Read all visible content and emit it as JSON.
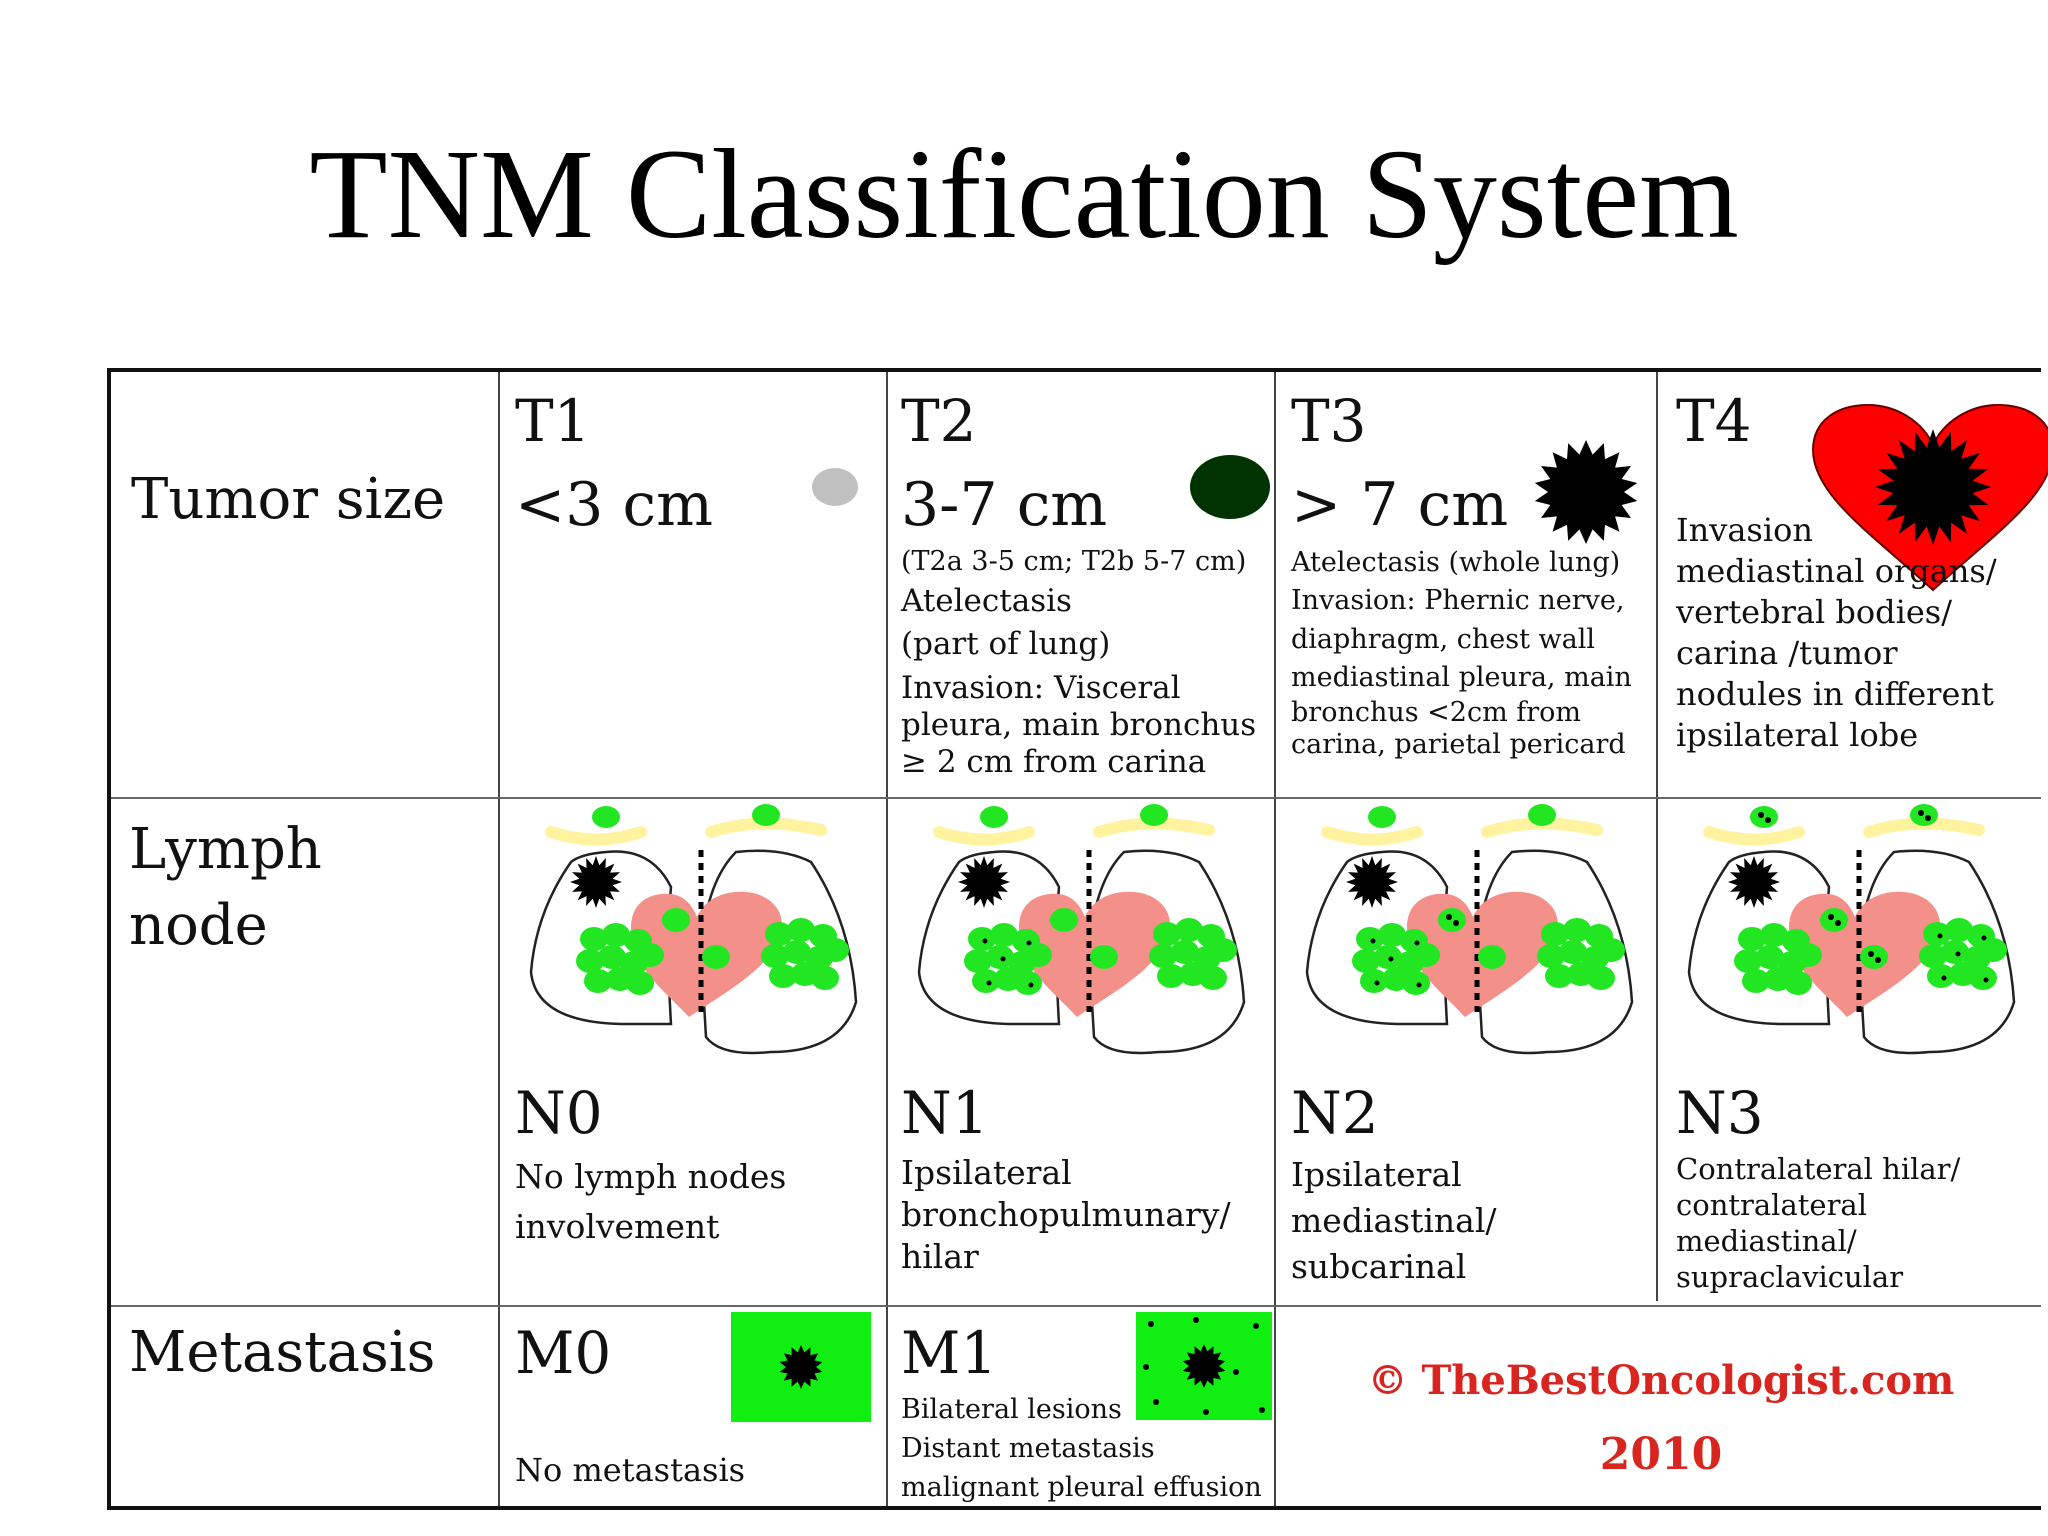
{
  "title": "TNM Classification System",
  "rows": {
    "tumor": "Tumor size",
    "lymph_line1": "Lymph",
    "lymph_line2": "node",
    "metastasis": "Metastasis"
  },
  "t_stages": [
    {
      "label": "T1",
      "size": "<3 cm",
      "icon": "small-grey-dot-icon",
      "color": "#c0c0c0",
      "notes": []
    },
    {
      "label": "T2",
      "size": "3-7 cm",
      "icon": "dark-green-dot-icon",
      "color": "#003300",
      "notes": [
        "(T2a 3-5 cm; T2b 5-7 cm)",
        "Atelectasis",
        "(part of lung)",
        "Invasion: Visceral",
        "pleura, main bronchus",
        "≥ 2 cm from carina"
      ]
    },
    {
      "label": "T3",
      "size": "> 7 cm",
      "icon": "black-starburst-icon",
      "color": "#000000",
      "notes": [
        "Atelectasis (whole lung)",
        "Invasion: Phernic nerve,",
        "diaphragm, chest wall",
        "mediastinal pleura, main",
        "bronchus <2cm from",
        "carina, parietal  pericard"
      ]
    },
    {
      "label": "T4",
      "size": "",
      "icon": "heart-with-tumor-icon",
      "color": "#ff0000",
      "notes": [
        "Invasion",
        "mediastinal organs/",
        "vertebral bodies/",
        "carina /tumor",
        "nodules in different",
        "ipsilateral lobe"
      ]
    }
  ],
  "n_stages": [
    {
      "label": "N0",
      "desc": [
        "No lymph nodes",
        "involvement"
      ]
    },
    {
      "label": "N1",
      "desc": [
        "Ipsilateral",
        "bronchopulmunary/",
        "hilar"
      ]
    },
    {
      "label": "N2",
      "desc": [
        "Ipsilateral",
        "mediastinal/",
        "subcarinal"
      ]
    },
    {
      "label": "N3",
      "desc": [
        "Contralateral hilar/",
        "contralateral",
        "mediastinal/",
        "supraclavicular"
      ]
    }
  ],
  "m_stages": [
    {
      "label": "M0",
      "desc": [
        "No metastasis"
      ],
      "icon": "single-lesion-icon"
    },
    {
      "label": "M1",
      "desc": [
        "Bilateral lesions",
        "Distant metastasis",
        "malignant pleural  effusion"
      ],
      "icon": "multiple-lesions-icon"
    }
  ],
  "copyright": {
    "line1": "© TheBestOncologist.com",
    "line2": "2010"
  },
  "colors": {
    "node_green": "#22e622",
    "heart_pink": "#f4908a",
    "clavicle_yellow": "#fff3a0",
    "square_green": "#11ee11",
    "copyright_red": "#d8251f"
  }
}
